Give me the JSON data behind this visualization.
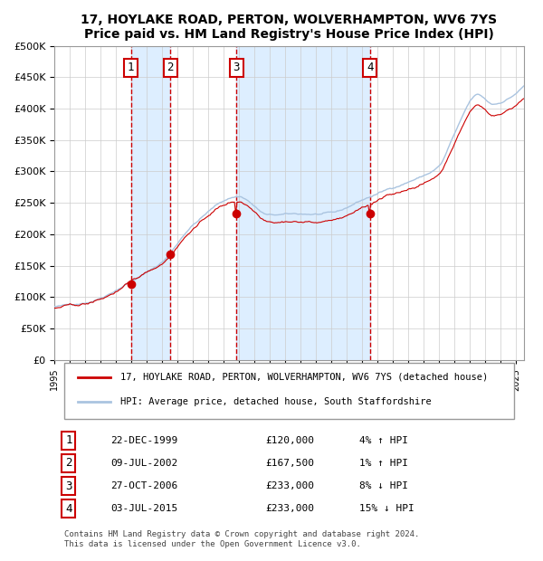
{
  "title": "17, HOYLAKE ROAD, PERTON, WOLVERHAMPTON, WV6 7YS",
  "subtitle": "Price paid vs. HM Land Registry's House Price Index (HPI)",
  "legend_entry1": "17, HOYLAKE ROAD, PERTON, WOLVERHAMPTON, WV6 7YS (detached house)",
  "legend_entry2": "HPI: Average price, detached house, South Staffordshire",
  "footer1": "Contains HM Land Registry data © Crown copyright and database right 2024.",
  "footer2": "This data is licensed under the Open Government Licence v3.0.",
  "transactions": [
    {
      "num": 1,
      "date": "22-DEC-1999",
      "price": 120000,
      "rel": "4% ↑ HPI",
      "year": 1999.97
    },
    {
      "num": 2,
      "date": "09-JUL-2002",
      "price": 167500,
      "rel": "1% ↑ HPI",
      "year": 2002.52
    },
    {
      "num": 3,
      "date": "27-OCT-2006",
      "price": 233000,
      "rel": "8% ↓ HPI",
      "year": 2006.82
    },
    {
      "num": 4,
      "date": "03-JUL-2015",
      "price": 233000,
      "rel": "15% ↓ HPI",
      "year": 2015.5
    }
  ],
  "ylim": [
    0,
    500000
  ],
  "xlim_start": 1995.0,
  "xlim_end": 2025.5,
  "hpi_color": "#aac4e0",
  "price_color": "#cc0000",
  "background_color": "#ddeeff",
  "plot_bg": "#ffffff",
  "grid_color": "#cccccc",
  "vline_color": "#cc0000",
  "box_color": "#cc0000"
}
